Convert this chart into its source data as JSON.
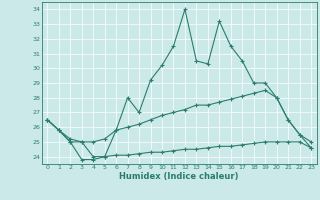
{
  "xlabel": "Humidex (Indice chaleur)",
  "x": [
    0,
    1,
    2,
    3,
    4,
    5,
    6,
    7,
    8,
    9,
    10,
    11,
    12,
    13,
    14,
    15,
    16,
    17,
    18,
    19,
    20,
    21,
    22,
    23
  ],
  "line_top": [
    26.5,
    25.8,
    25.0,
    23.8,
    23.8,
    24.0,
    25.8,
    28.0,
    27.0,
    29.2,
    30.2,
    31.5,
    34.0,
    30.5,
    30.3,
    33.2,
    31.5,
    30.5,
    29.0,
    29.0,
    28.0,
    26.5,
    25.5,
    24.6
  ],
  "line_mid": [
    26.5,
    25.8,
    25.2,
    25.0,
    25.0,
    25.2,
    25.8,
    26.0,
    26.2,
    26.5,
    26.8,
    27.0,
    27.2,
    27.5,
    27.5,
    27.7,
    27.9,
    28.1,
    28.3,
    28.5,
    28.0,
    26.5,
    25.5,
    25.0
  ],
  "line_bot": [
    26.5,
    25.8,
    25.0,
    25.0,
    24.0,
    24.0,
    24.1,
    24.1,
    24.2,
    24.3,
    24.3,
    24.4,
    24.5,
    24.5,
    24.6,
    24.7,
    24.7,
    24.8,
    24.9,
    25.0,
    25.0,
    25.0,
    25.0,
    24.6
  ],
  "color": "#2a7d6e",
  "bg_color": "#cce9e9",
  "ylim": [
    23.5,
    34.5
  ],
  "xlim": [
    -0.5,
    23.5
  ],
  "yticks": [
    24,
    25,
    26,
    27,
    28,
    29,
    30,
    31,
    32,
    33,
    34
  ],
  "xticks": [
    0,
    1,
    2,
    3,
    4,
    5,
    6,
    7,
    8,
    9,
    10,
    11,
    12,
    13,
    14,
    15,
    16,
    17,
    18,
    19,
    20,
    21,
    22,
    23
  ]
}
